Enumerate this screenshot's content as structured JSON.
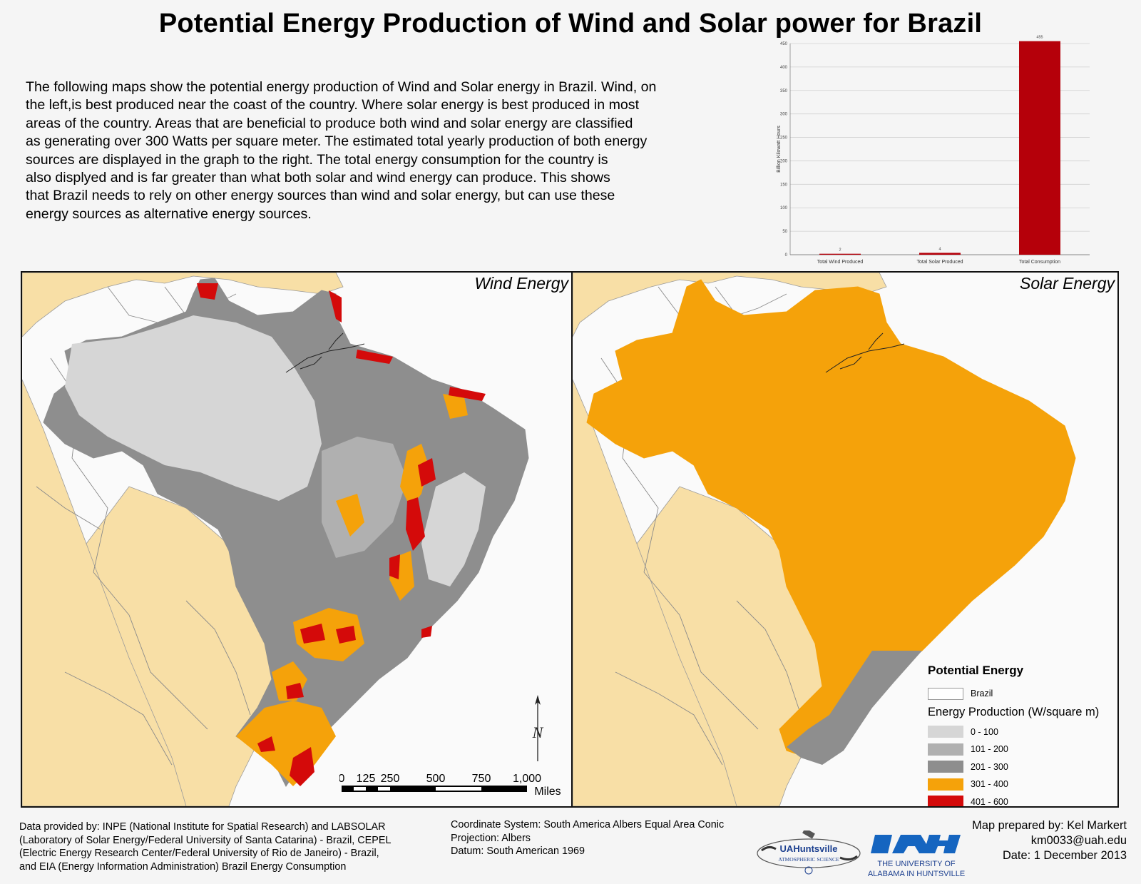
{
  "title": "Potential Energy Production of Wind and Solar power for Brazil",
  "description_lines": [
    "The following maps show the potential energy production of Wind and Solar energy in Brazil. Wind, on",
    "the left,is best produced near the coast of the country. Where solar energy is best produced in most",
    "areas of the country. Areas that are beneficial to produce both wind and solar energy are classified",
    "as generating over 300 Watts per square meter. The estimated total yearly production of both energy",
    "sources are displayed in the graph to the right. The total energy consumption for the country is",
    "also displyed and is far greater than what both solar and wind energy can produce. This shows",
    " that Brazil needs to rely on other energy sources than wind and solar energy, but can use these",
    "energy sources as alternative energy sources."
  ],
  "chart_data": {
    "type": "bar",
    "title": "",
    "categories": [
      "Total Wind Produced",
      "Total Solar Produced",
      "Total Consumption"
    ],
    "values": [
      2,
      4,
      455
    ],
    "ylabel": "Billion Kilowatt Hours",
    "xlabel": "",
    "ylim": [
      0,
      450
    ],
    "yticks": [
      0,
      50,
      100,
      150,
      200,
      250,
      300,
      350,
      400,
      450
    ],
    "data_labels": [
      "2",
      "4",
      "455"
    ],
    "bar_color": "#b5000a",
    "grid": true
  },
  "maps": {
    "wind_title": "Wind Energy",
    "solar_title": "Solar Energy"
  },
  "legend": {
    "title": "Potential Energy",
    "brazil_label": "Brazil",
    "subtitle": "Energy Production (W/square m)",
    "classes": [
      {
        "label": "0 - 100",
        "color": "#d6d6d6"
      },
      {
        "label": "101 - 200",
        "color": "#b0b0b0"
      },
      {
        "label": "201 - 300",
        "color": "#8e8e8e"
      },
      {
        "label": "301 - 400",
        "color": "#f5a20a"
      },
      {
        "label": "401 - 600",
        "color": "#d40a0a"
      }
    ]
  },
  "scale": {
    "ticks": [
      "0",
      "125",
      "250",
      "500",
      "750",
      "1,000"
    ],
    "unit": "Miles"
  },
  "north_label": "N",
  "footer": {
    "credit_lines": [
      "Data provided by: INPE (National Institute for Spatial Research) and LABSOLAR",
      "(Laboratory of Solar Energy/Federal University of Santa Catarina) - Brazil, CEPEL",
      "(Electric Energy Research Center/Federal University of Rio de Janeiro) - Brazil,",
      "and EIA (Energy Information Administration) Brazil Energy Consumption"
    ],
    "coord_lines": [
      "Coordinate System: South America Albers Equal Area Conic",
      "Projection: Albers",
      "Datum: South American 1969"
    ],
    "prepared_lines": [
      "Map prepared by: Kel Markert",
      "km0033@uah.edu",
      "Date: 1 December 2013"
    ],
    "logo1_text": "UAHuntsville",
    "logo1_sub": "ATMOSPHERIC SCIENCE",
    "logo2_line1": "THE UNIVERSITY OF",
    "logo2_line2": "ALABAMA IN HUNTSVILLE"
  },
  "colors": {
    "land": "#f8dfa6",
    "ocean": "#fafafa",
    "solar_main": "#f5a20a"
  }
}
